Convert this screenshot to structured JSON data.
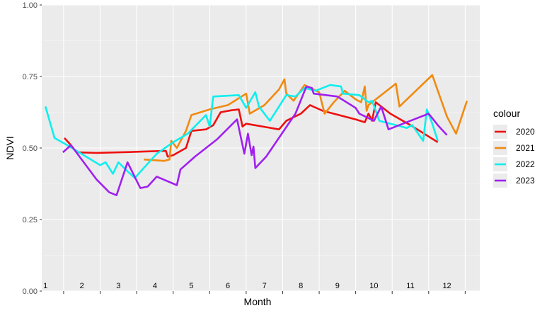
{
  "chart_data": {
    "type": "line",
    "title": "",
    "xlabel": "Month",
    "ylabel": "NDVI",
    "xlim": [
      0.5,
      12.5
    ],
    "ylim": [
      0,
      1
    ],
    "y_ticks": [
      "0.00",
      "0.25",
      "0.50",
      "0.75",
      "1.00"
    ],
    "y_tick_values": [
      0,
      0.25,
      0.5,
      0.75,
      1
    ],
    "x_month_labels": [
      "1",
      "2",
      "3",
      "4",
      "5",
      "6",
      "7",
      "8",
      "9",
      "10",
      "11",
      "12"
    ],
    "grid": true,
    "legend_title": "colour",
    "legend_position": "right",
    "series": [
      {
        "name": "2020",
        "color": "#ee1010",
        "points": [
          [
            0.52,
            0.535
          ],
          [
            0.7,
            0.51
          ],
          [
            0.85,
            0.485
          ],
          [
            1.4,
            0.483
          ],
          [
            2.3,
            0.486
          ],
          [
            2.8,
            0.488
          ],
          [
            3.3,
            0.49
          ],
          [
            3.35,
            0.47
          ],
          [
            3.5,
            0.475
          ],
          [
            3.85,
            0.5
          ],
          [
            4.0,
            0.56
          ],
          [
            4.4,
            0.565
          ],
          [
            4.6,
            0.58
          ],
          [
            4.8,
            0.625
          ],
          [
            5.1,
            0.632
          ],
          [
            5.3,
            0.635
          ],
          [
            5.4,
            0.575
          ],
          [
            5.5,
            0.585
          ],
          [
            6.4,
            0.565
          ],
          [
            6.6,
            0.595
          ],
          [
            7.0,
            0.62
          ],
          [
            7.25,
            0.65
          ],
          [
            7.6,
            0.63
          ],
          [
            8.5,
            0.6
          ],
          [
            8.75,
            0.59
          ],
          [
            8.85,
            0.62
          ],
          [
            8.95,
            0.595
          ],
          [
            9.05,
            0.66
          ],
          [
            9.45,
            0.62
          ],
          [
            10.0,
            0.58
          ],
          [
            10.5,
            0.54
          ],
          [
            10.75,
            0.52
          ]
        ]
      },
      {
        "name": "2021",
        "color": "#f18a10",
        "points": [
          [
            2.7,
            0.46
          ],
          [
            3.25,
            0.455
          ],
          [
            3.4,
            0.46
          ],
          [
            3.45,
            0.525
          ],
          [
            3.6,
            0.5
          ],
          [
            3.85,
            0.56
          ],
          [
            4.0,
            0.615
          ],
          [
            4.5,
            0.635
          ],
          [
            5.0,
            0.65
          ],
          [
            5.5,
            0.69
          ],
          [
            5.6,
            0.62
          ],
          [
            6.0,
            0.65
          ],
          [
            6.4,
            0.705
          ],
          [
            6.55,
            0.74
          ],
          [
            6.6,
            0.69
          ],
          [
            6.8,
            0.665
          ],
          [
            7.1,
            0.72
          ],
          [
            7.5,
            0.695
          ],
          [
            7.65,
            0.62
          ],
          [
            7.9,
            0.66
          ],
          [
            8.2,
            0.7
          ],
          [
            8.5,
            0.67
          ],
          [
            8.65,
            0.66
          ],
          [
            8.75,
            0.715
          ],
          [
            8.8,
            0.63
          ],
          [
            8.85,
            0.65
          ],
          [
            9.6,
            0.725
          ],
          [
            9.7,
            0.645
          ],
          [
            10.6,
            0.755
          ],
          [
            11.0,
            0.61
          ],
          [
            11.25,
            0.55
          ],
          [
            11.55,
            0.665
          ]
        ]
      },
      {
        "name": "2022",
        "color": "#10eeee",
        "points": [
          [
            0.0,
            0.645
          ],
          [
            0.25,
            0.535
          ],
          [
            0.6,
            0.51
          ],
          [
            1.5,
            0.44
          ],
          [
            1.65,
            0.45
          ],
          [
            1.85,
            0.41
          ],
          [
            2.0,
            0.45
          ],
          [
            2.2,
            0.425
          ],
          [
            2.45,
            0.395
          ],
          [
            2.8,
            0.445
          ],
          [
            3.05,
            0.48
          ],
          [
            3.5,
            0.52
          ],
          [
            3.9,
            0.55
          ],
          [
            4.4,
            0.615
          ],
          [
            4.5,
            0.575
          ],
          [
            4.6,
            0.68
          ],
          [
            5.3,
            0.685
          ],
          [
            5.5,
            0.64
          ],
          [
            5.75,
            0.695
          ],
          [
            5.85,
            0.645
          ],
          [
            6.15,
            0.595
          ],
          [
            6.6,
            0.685
          ],
          [
            6.85,
            0.68
          ],
          [
            7.1,
            0.71
          ],
          [
            7.4,
            0.7
          ],
          [
            7.8,
            0.72
          ],
          [
            8.1,
            0.715
          ],
          [
            8.15,
            0.69
          ],
          [
            8.6,
            0.685
          ],
          [
            8.85,
            0.66
          ],
          [
            8.95,
            0.665
          ],
          [
            9.15,
            0.595
          ],
          [
            9.9,
            0.57
          ],
          [
            10.05,
            0.58
          ],
          [
            10.35,
            0.525
          ],
          [
            10.45,
            0.635
          ],
          [
            10.6,
            0.585
          ],
          [
            10.75,
            0.525
          ]
        ]
      },
      {
        "name": "2023",
        "color": "#a020f0",
        "points": [
          [
            0.48,
            0.485
          ],
          [
            0.7,
            0.51
          ],
          [
            1.4,
            0.39
          ],
          [
            1.75,
            0.345
          ],
          [
            1.95,
            0.335
          ],
          [
            2.25,
            0.45
          ],
          [
            2.6,
            0.36
          ],
          [
            2.8,
            0.365
          ],
          [
            3.05,
            0.4
          ],
          [
            3.6,
            0.37
          ],
          [
            3.7,
            0.425
          ],
          [
            4.1,
            0.47
          ],
          [
            4.7,
            0.53
          ],
          [
            5.25,
            0.6
          ],
          [
            5.45,
            0.48
          ],
          [
            5.55,
            0.55
          ],
          [
            5.65,
            0.475
          ],
          [
            5.7,
            0.505
          ],
          [
            5.75,
            0.43
          ],
          [
            6.05,
            0.47
          ],
          [
            6.85,
            0.62
          ],
          [
            7.15,
            0.715
          ],
          [
            7.3,
            0.71
          ],
          [
            7.35,
            0.69
          ],
          [
            8.0,
            0.68
          ],
          [
            8.5,
            0.64
          ],
          [
            8.6,
            0.62
          ],
          [
            9.0,
            0.595
          ],
          [
            9.2,
            0.645
          ],
          [
            9.4,
            0.565
          ],
          [
            10.1,
            0.6
          ],
          [
            10.5,
            0.62
          ],
          [
            10.75,
            0.58
          ],
          [
            11.0,
            0.545
          ]
        ]
      }
    ]
  }
}
